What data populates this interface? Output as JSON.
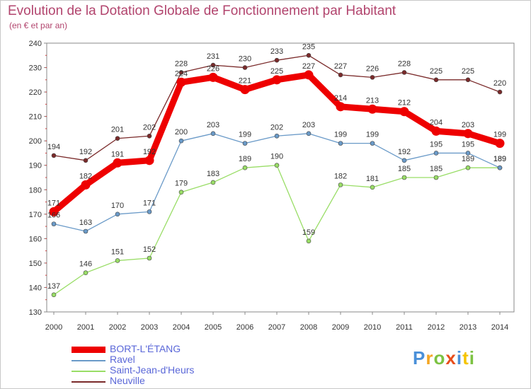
{
  "title": "Evolution de la Dotation Globale de Fonctionnement par Habitant",
  "subtitle": "(en € et par an)",
  "logo": {
    "text": "Proxiti"
  },
  "chart_data": {
    "type": "line",
    "x": [
      "2000",
      "2001",
      "2002",
      "2003",
      "2004",
      "2005",
      "2006",
      "2007",
      "2008",
      "2009",
      "2010",
      "2011",
      "2012",
      "2013",
      "2014"
    ],
    "ylim": [
      130,
      240
    ],
    "yticks": [
      130,
      140,
      150,
      160,
      170,
      180,
      190,
      200,
      210,
      220,
      230,
      240
    ],
    "grid": false,
    "legend_position": "bottom",
    "series": [
      {
        "name": "BORT-L'ÉTANG",
        "color": "#ee0000",
        "values": [
          171,
          182,
          191,
          192,
          224,
          226,
          221,
          225,
          227,
          214,
          213,
          212,
          204,
          203,
          199
        ]
      },
      {
        "name": "Ravel",
        "color": "#6a9ac8",
        "values": [
          166,
          163,
          170,
          171,
          200,
          203,
          199,
          202,
          203,
          199,
          199,
          192,
          195,
          195,
          189
        ]
      },
      {
        "name": "Saint-Jean-d'Heurs",
        "color": "#99dd66",
        "values": [
          137,
          146,
          151,
          152,
          179,
          183,
          189,
          190,
          159,
          182,
          181,
          185,
          185,
          189,
          189
        ]
      },
      {
        "name": "Neuville",
        "color": "#7a2a2a",
        "values": [
          194,
          192,
          201,
          202,
          228,
          231,
          230,
          233,
          235,
          227,
          226,
          228,
          225,
          225,
          220
        ]
      }
    ]
  }
}
